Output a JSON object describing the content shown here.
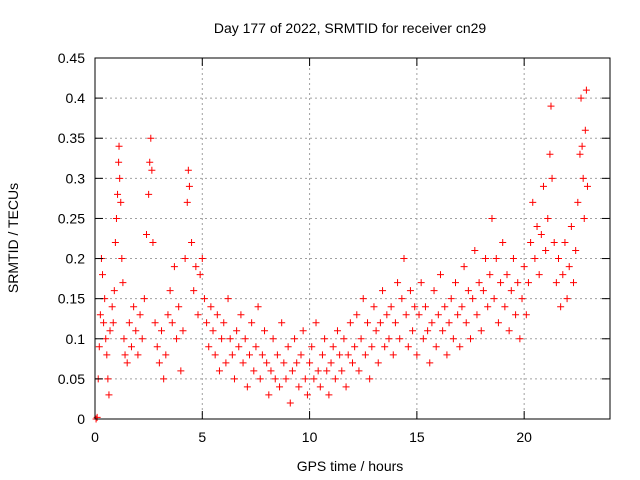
{
  "chart_data": {
    "type": "scatter",
    "title": "Day 177 of 2022, SRMTID for receiver cn29",
    "xlabel": "GPS time / hours",
    "ylabel": "SRMTID / TECUs",
    "xlim": [
      0,
      24
    ],
    "ylim": [
      0,
      0.45
    ],
    "xticks": [
      0,
      5,
      10,
      15,
      20
    ],
    "xtick_labels": [
      "0",
      "5",
      "10",
      "15",
      "20"
    ],
    "yticks": [
      0,
      0.05,
      0.1,
      0.15,
      0.2,
      0.25,
      0.3,
      0.35,
      0.4,
      0.45
    ],
    "ytick_labels": [
      "0",
      "0.05",
      "0.1",
      "0.15",
      "0.2",
      "0.25",
      "0.3",
      "0.35",
      "0.4",
      "0.45"
    ],
    "grid": true,
    "marker": "+",
    "color": "#ff0000",
    "series": [
      {
        "name": "SRMTID",
        "points": [
          [
            0.05,
            0.0
          ],
          [
            0.1,
            0.002
          ],
          [
            0.15,
            0.05
          ],
          [
            0.2,
            0.09
          ],
          [
            0.25,
            0.13
          ],
          [
            0.3,
            0.2
          ],
          [
            0.35,
            0.18
          ],
          [
            0.4,
            0.12
          ],
          [
            0.45,
            0.15
          ],
          [
            0.5,
            0.1
          ],
          [
            0.55,
            0.08
          ],
          [
            0.6,
            0.05
          ],
          [
            0.65,
            0.03
          ],
          [
            0.7,
            0.11
          ],
          [
            0.8,
            0.14
          ],
          [
            0.85,
            0.12
          ],
          [
            0.9,
            0.16
          ],
          [
            0.95,
            0.22
          ],
          [
            1.0,
            0.25
          ],
          [
            1.05,
            0.28
          ],
          [
            1.1,
            0.32
          ],
          [
            1.12,
            0.34
          ],
          [
            1.15,
            0.3
          ],
          [
            1.2,
            0.27
          ],
          [
            1.25,
            0.2
          ],
          [
            1.3,
            0.17
          ],
          [
            1.35,
            0.1
          ],
          [
            1.4,
            0.08
          ],
          [
            1.5,
            0.07
          ],
          [
            1.6,
            0.12
          ],
          [
            1.7,
            0.09
          ],
          [
            1.8,
            0.14
          ],
          [
            1.9,
            0.11
          ],
          [
            2.0,
            0.08
          ],
          [
            2.1,
            0.13
          ],
          [
            2.2,
            0.1
          ],
          [
            2.3,
            0.15
          ],
          [
            2.4,
            0.23
          ],
          [
            2.5,
            0.28
          ],
          [
            2.55,
            0.32
          ],
          [
            2.6,
            0.35
          ],
          [
            2.65,
            0.31
          ],
          [
            2.7,
            0.22
          ],
          [
            2.8,
            0.12
          ],
          [
            2.9,
            0.09
          ],
          [
            3.0,
            0.07
          ],
          [
            3.1,
            0.11
          ],
          [
            3.2,
            0.05
          ],
          [
            3.3,
            0.08
          ],
          [
            3.4,
            0.13
          ],
          [
            3.5,
            0.16
          ],
          [
            3.6,
            0.12
          ],
          [
            3.7,
            0.19
          ],
          [
            3.8,
            0.1
          ],
          [
            3.9,
            0.14
          ],
          [
            4.0,
            0.06
          ],
          [
            4.1,
            0.11
          ],
          [
            4.2,
            0.2
          ],
          [
            4.3,
            0.27
          ],
          [
            4.35,
            0.31
          ],
          [
            4.4,
            0.29
          ],
          [
            4.5,
            0.22
          ],
          [
            4.6,
            0.16
          ],
          [
            4.7,
            0.19
          ],
          [
            4.8,
            0.13
          ],
          [
            4.9,
            0.18
          ],
          [
            5.0,
            0.2
          ],
          [
            5.1,
            0.15
          ],
          [
            5.2,
            0.12
          ],
          [
            5.3,
            0.09
          ],
          [
            5.4,
            0.14
          ],
          [
            5.5,
            0.11
          ],
          [
            5.6,
            0.08
          ],
          [
            5.7,
            0.13
          ],
          [
            5.8,
            0.06
          ],
          [
            5.9,
            0.1
          ],
          [
            6.0,
            0.12
          ],
          [
            6.1,
            0.07
          ],
          [
            6.2,
            0.15
          ],
          [
            6.3,
            0.1
          ],
          [
            6.4,
            0.08
          ],
          [
            6.5,
            0.05
          ],
          [
            6.6,
            0.11
          ],
          [
            6.7,
            0.09
          ],
          [
            6.8,
            0.13
          ],
          [
            6.9,
            0.07
          ],
          [
            7.0,
            0.1
          ],
          [
            7.1,
            0.04
          ],
          [
            7.2,
            0.08
          ],
          [
            7.3,
            0.12
          ],
          [
            7.4,
            0.06
          ],
          [
            7.5,
            0.09
          ],
          [
            7.6,
            0.14
          ],
          [
            7.7,
            0.05
          ],
          [
            7.8,
            0.08
          ],
          [
            7.9,
            0.11
          ],
          [
            8.0,
            0.07
          ],
          [
            8.1,
            0.03
          ],
          [
            8.2,
            0.06
          ],
          [
            8.3,
            0.1
          ],
          [
            8.4,
            0.05
          ],
          [
            8.5,
            0.08
          ],
          [
            8.6,
            0.04
          ],
          [
            8.7,
            0.12
          ],
          [
            8.8,
            0.07
          ],
          [
            8.9,
            0.05
          ],
          [
            9.0,
            0.09
          ],
          [
            9.1,
            0.02
          ],
          [
            9.2,
            0.06
          ],
          [
            9.3,
            0.1
          ],
          [
            9.4,
            0.07
          ],
          [
            9.5,
            0.04
          ],
          [
            9.6,
            0.08
          ],
          [
            9.7,
            0.11
          ],
          [
            9.8,
            0.05
          ],
          [
            9.9,
            0.03
          ],
          [
            10.0,
            0.07
          ],
          [
            10.1,
            0.09
          ],
          [
            10.2,
            0.05
          ],
          [
            10.3,
            0.12
          ],
          [
            10.4,
            0.06
          ],
          [
            10.5,
            0.04
          ],
          [
            10.6,
            0.08
          ],
          [
            10.7,
            0.1
          ],
          [
            10.8,
            0.06
          ],
          [
            10.9,
            0.03
          ],
          [
            11.0,
            0.07
          ],
          [
            11.1,
            0.09
          ],
          [
            11.2,
            0.05
          ],
          [
            11.3,
            0.11
          ],
          [
            11.4,
            0.08
          ],
          [
            11.5,
            0.06
          ],
          [
            11.6,
            0.1
          ],
          [
            11.7,
            0.04
          ],
          [
            11.8,
            0.08
          ],
          [
            11.9,
            0.12
          ],
          [
            12.0,
            0.07
          ],
          [
            12.1,
            0.09
          ],
          [
            12.2,
            0.13
          ],
          [
            12.3,
            0.06
          ],
          [
            12.4,
            0.1
          ],
          [
            12.5,
            0.15
          ],
          [
            12.6,
            0.08
          ],
          [
            12.7,
            0.12
          ],
          [
            12.8,
            0.05
          ],
          [
            12.9,
            0.09
          ],
          [
            13.0,
            0.14
          ],
          [
            13.1,
            0.11
          ],
          [
            13.2,
            0.07
          ],
          [
            13.3,
            0.12
          ],
          [
            13.4,
            0.16
          ],
          [
            13.5,
            0.09
          ],
          [
            13.6,
            0.13
          ],
          [
            13.7,
            0.1
          ],
          [
            13.8,
            0.14
          ],
          [
            13.9,
            0.08
          ],
          [
            14.0,
            0.12
          ],
          [
            14.1,
            0.17
          ],
          [
            14.2,
            0.1
          ],
          [
            14.3,
            0.15
          ],
          [
            14.4,
            0.2
          ],
          [
            14.5,
            0.13
          ],
          [
            14.6,
            0.09
          ],
          [
            14.7,
            0.16
          ],
          [
            14.8,
            0.11
          ],
          [
            14.9,
            0.14
          ],
          [
            15.0,
            0.08
          ],
          [
            15.1,
            0.13
          ],
          [
            15.2,
            0.17
          ],
          [
            15.3,
            0.1
          ],
          [
            15.4,
            0.14
          ],
          [
            15.5,
            0.11
          ],
          [
            15.6,
            0.07
          ],
          [
            15.7,
            0.12
          ],
          [
            15.8,
            0.16
          ],
          [
            15.9,
            0.09
          ],
          [
            16.0,
            0.13
          ],
          [
            16.1,
            0.18
          ],
          [
            16.2,
            0.11
          ],
          [
            16.3,
            0.14
          ],
          [
            16.4,
            0.08
          ],
          [
            16.5,
            0.12
          ],
          [
            16.6,
            0.15
          ],
          [
            16.7,
            0.1
          ],
          [
            16.8,
            0.17
          ],
          [
            16.9,
            0.13
          ],
          [
            17.0,
            0.09
          ],
          [
            17.1,
            0.14
          ],
          [
            17.2,
            0.19
          ],
          [
            17.3,
            0.12
          ],
          [
            17.4,
            0.16
          ],
          [
            17.5,
            0.1
          ],
          [
            17.6,
            0.15
          ],
          [
            17.7,
            0.21
          ],
          [
            17.8,
            0.13
          ],
          [
            17.9,
            0.17
          ],
          [
            18.0,
            0.11
          ],
          [
            18.1,
            0.16
          ],
          [
            18.2,
            0.2
          ],
          [
            18.3,
            0.14
          ],
          [
            18.4,
            0.18
          ],
          [
            18.5,
            0.25
          ],
          [
            18.6,
            0.15
          ],
          [
            18.7,
            0.2
          ],
          [
            18.8,
            0.12
          ],
          [
            18.9,
            0.17
          ],
          [
            19.0,
            0.22
          ],
          [
            19.1,
            0.14
          ],
          [
            19.2,
            0.18
          ],
          [
            19.3,
            0.11
          ],
          [
            19.4,
            0.16
          ],
          [
            19.5,
            0.2
          ],
          [
            19.6,
            0.13
          ],
          [
            19.7,
            0.17
          ],
          [
            19.8,
            0.1
          ],
          [
            19.9,
            0.15
          ],
          [
            20.0,
            0.19
          ],
          [
            20.1,
            0.13
          ],
          [
            20.2,
            0.17
          ],
          [
            20.3,
            0.22
          ],
          [
            20.4,
            0.27
          ],
          [
            20.5,
            0.2
          ],
          [
            20.6,
            0.24
          ],
          [
            20.7,
            0.18
          ],
          [
            20.8,
            0.23
          ],
          [
            20.9,
            0.29
          ],
          [
            21.0,
            0.21
          ],
          [
            21.1,
            0.25
          ],
          [
            21.2,
            0.33
          ],
          [
            21.25,
            0.39
          ],
          [
            21.3,
            0.3
          ],
          [
            21.4,
            0.22
          ],
          [
            21.5,
            0.17
          ],
          [
            21.6,
            0.2
          ],
          [
            21.7,
            0.14
          ],
          [
            21.8,
            0.18
          ],
          [
            21.9,
            0.22
          ],
          [
            22.0,
            0.15
          ],
          [
            22.1,
            0.19
          ],
          [
            22.2,
            0.24
          ],
          [
            22.3,
            0.17
          ],
          [
            22.4,
            0.21
          ],
          [
            22.5,
            0.27
          ],
          [
            22.6,
            0.33
          ],
          [
            22.65,
            0.4
          ],
          [
            22.7,
            0.34
          ],
          [
            22.75,
            0.3
          ],
          [
            22.8,
            0.25
          ],
          [
            22.85,
            0.36
          ],
          [
            22.9,
            0.41
          ],
          [
            22.95,
            0.29
          ]
        ]
      }
    ]
  }
}
